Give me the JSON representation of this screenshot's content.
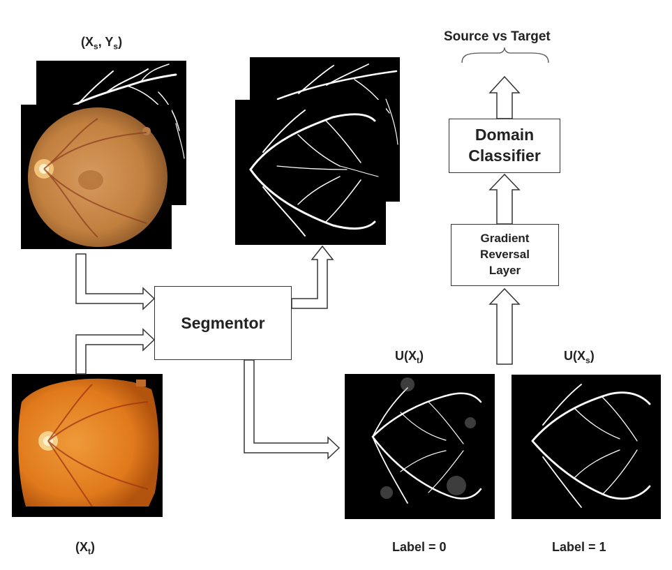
{
  "labels": {
    "source_pair": "(X",
    "source_pair_sub1": "s",
    "source_pair_mid": ", Y",
    "source_pair_sub2": "s",
    "source_pair_end": ")",
    "target_input_pre": "(X",
    "target_input_sub": "t",
    "target_input_end": ")",
    "u_target_pre": "U(X",
    "u_target_sub": "t",
    "u_target_end": ")",
    "u_source_pre": "U(X",
    "u_source_sub": "s",
    "u_source_end": ")",
    "label_target": "Label = 0",
    "label_source": "Label = 1",
    "output": "Source vs Target"
  },
  "blocks": {
    "segmentor": "Segmentor",
    "domain_classifier_line1": "Domain",
    "domain_classifier_line2": "Classifier",
    "grl_line1": "Gradient",
    "grl_line2": "Reversal",
    "grl_line3": "Layer"
  },
  "colors": {
    "fundus_source": "#c8864a",
    "fundus_target": "#e07a1c",
    "vessel": "#ffffff",
    "background": "#000000",
    "border": "#333333"
  }
}
